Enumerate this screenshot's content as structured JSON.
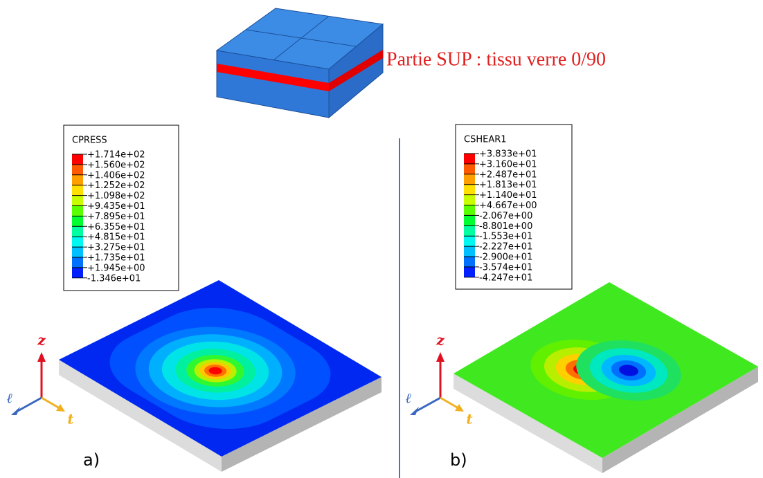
{
  "figure": {
    "top_label": "Partie SUP : tissu verre 0/90",
    "panels": [
      {
        "label": "a)",
        "legend": {
          "title": "CPRESS",
          "values": [
            "+1.714e+02",
            "+1.560e+02",
            "+1.406e+02",
            "+1.252e+02",
            "+1.098e+02",
            "+9.435e+01",
            "+7.895e+01",
            "+6.355e+01",
            "+4.815e+01",
            "+3.275e+01",
            "+1.735e+01",
            "+1.945e+00",
            "-1.346e+01"
          ]
        },
        "axes": {
          "z": "z",
          "l": "ℓ",
          "t": "t"
        }
      },
      {
        "label": "b)",
        "legend": {
          "title": "CSHEAR1",
          "values": [
            "+3.833e+01",
            "+3.160e+01",
            "+2.487e+01",
            "+1.813e+01",
            "+1.140e+01",
            "+4.667e+00",
            "-2.067e+00",
            "-8.801e+00",
            "-1.553e+01",
            "-2.227e+01",
            "-2.900e+01",
            "-3.574e+01",
            "-4.247e+01"
          ]
        },
        "axes": {
          "z": "z",
          "l": "ℓ",
          "t": "t"
        }
      }
    ]
  }
}
